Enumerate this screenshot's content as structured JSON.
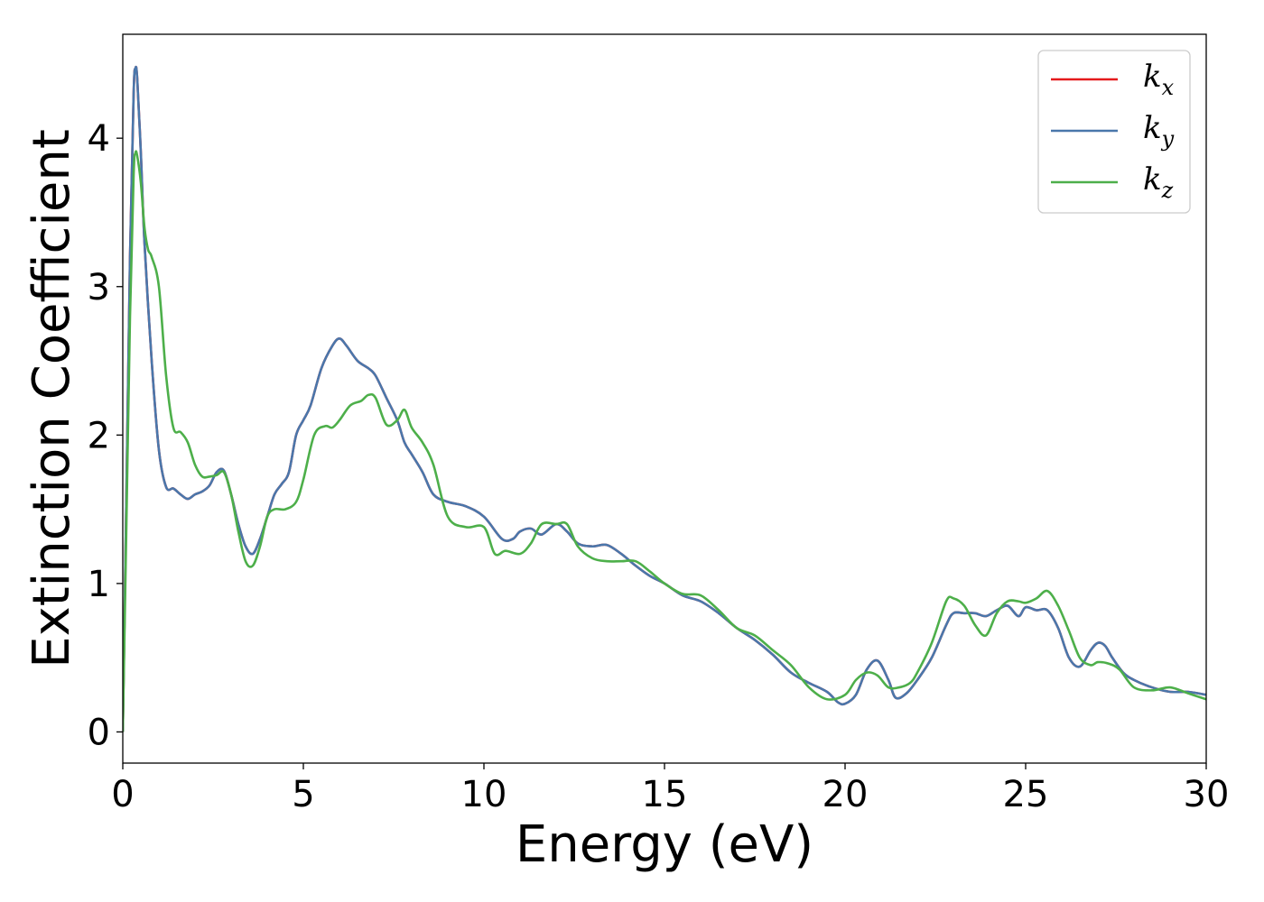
{
  "chart_data": {
    "type": "line",
    "xlabel": "Energy (eV)",
    "ylabel": "Extinction Coefficient",
    "xlim": [
      0,
      30
    ],
    "ylim": [
      -0.21,
      4.7
    ],
    "xticks": [
      "0",
      "5",
      "10",
      "15",
      "20",
      "25",
      "30"
    ],
    "yticks": [
      "0",
      "1",
      "2",
      "3",
      "4"
    ],
    "grid": false,
    "legend_position": "top-right",
    "series": [
      {
        "name_main": "k",
        "name_sub": "x",
        "color": "#e41a1c",
        "x": [
          0,
          0.1,
          0.2,
          0.3,
          0.35,
          0.4,
          0.5,
          0.6,
          0.8,
          1.0,
          1.2,
          1.4,
          1.6,
          1.8,
          2.0,
          2.2,
          2.4,
          2.6,
          2.8,
          3.0,
          3.2,
          3.4,
          3.6,
          3.8,
          4.0,
          4.2,
          4.4,
          4.6,
          4.8,
          5.0,
          5.2,
          5.5,
          5.8,
          6.0,
          6.2,
          6.5,
          6.8,
          7.0,
          7.3,
          7.6,
          7.8,
          8.0,
          8.3,
          8.6,
          9.0,
          9.5,
          10.0,
          10.5,
          10.8,
          11.0,
          11.3,
          11.6,
          12.0,
          12.3,
          12.6,
          13.0,
          13.4,
          13.8,
          14.2,
          14.6,
          15.0,
          15.5,
          16.0,
          16.5,
          17.0,
          17.5,
          18.0,
          18.5,
          19.0,
          19.5,
          19.8,
          20.0,
          20.3,
          20.6,
          20.9,
          21.2,
          21.4,
          21.7,
          22.0,
          22.4,
          22.8,
          23.0,
          23.3,
          23.6,
          23.9,
          24.2,
          24.5,
          24.8,
          25.0,
          25.3,
          25.6,
          25.9,
          26.2,
          26.5,
          26.8,
          27.0,
          27.2,
          27.4,
          27.7,
          28.0,
          28.5,
          29.0,
          29.5,
          30.0
        ],
        "y": [
          0,
          1.6,
          3.2,
          4.3,
          4.47,
          4.4,
          3.9,
          3.3,
          2.5,
          1.9,
          1.65,
          1.64,
          1.6,
          1.57,
          1.6,
          1.62,
          1.66,
          1.75,
          1.76,
          1.6,
          1.4,
          1.25,
          1.2,
          1.3,
          1.45,
          1.6,
          1.67,
          1.75,
          2.0,
          2.1,
          2.2,
          2.45,
          2.6,
          2.65,
          2.6,
          2.5,
          2.45,
          2.4,
          2.25,
          2.1,
          1.95,
          1.87,
          1.75,
          1.6,
          1.55,
          1.52,
          1.45,
          1.3,
          1.3,
          1.35,
          1.37,
          1.33,
          1.4,
          1.35,
          1.27,
          1.25,
          1.26,
          1.2,
          1.12,
          1.05,
          1.0,
          0.92,
          0.88,
          0.8,
          0.7,
          0.62,
          0.52,
          0.4,
          0.33,
          0.27,
          0.2,
          0.19,
          0.25,
          0.42,
          0.48,
          0.35,
          0.23,
          0.26,
          0.35,
          0.5,
          0.72,
          0.8,
          0.8,
          0.8,
          0.78,
          0.82,
          0.85,
          0.78,
          0.84,
          0.82,
          0.82,
          0.7,
          0.5,
          0.44,
          0.55,
          0.6,
          0.58,
          0.5,
          0.4,
          0.35,
          0.3,
          0.27,
          0.27,
          0.25
        ]
      },
      {
        "name_main": "k",
        "name_sub": "y",
        "color": "#4a77ab",
        "x": [
          0,
          0.1,
          0.2,
          0.3,
          0.35,
          0.4,
          0.5,
          0.6,
          0.8,
          1.0,
          1.2,
          1.4,
          1.6,
          1.8,
          2.0,
          2.2,
          2.4,
          2.6,
          2.8,
          3.0,
          3.2,
          3.4,
          3.6,
          3.8,
          4.0,
          4.2,
          4.4,
          4.6,
          4.8,
          5.0,
          5.2,
          5.5,
          5.8,
          6.0,
          6.2,
          6.5,
          6.8,
          7.0,
          7.3,
          7.6,
          7.8,
          8.0,
          8.3,
          8.6,
          9.0,
          9.5,
          10.0,
          10.5,
          10.8,
          11.0,
          11.3,
          11.6,
          12.0,
          12.3,
          12.6,
          13.0,
          13.4,
          13.8,
          14.2,
          14.6,
          15.0,
          15.5,
          16.0,
          16.5,
          17.0,
          17.5,
          18.0,
          18.5,
          19.0,
          19.5,
          19.8,
          20.0,
          20.3,
          20.6,
          20.9,
          21.2,
          21.4,
          21.7,
          22.0,
          22.4,
          22.8,
          23.0,
          23.3,
          23.6,
          23.9,
          24.2,
          24.5,
          24.8,
          25.0,
          25.3,
          25.6,
          25.9,
          26.2,
          26.5,
          26.8,
          27.0,
          27.2,
          27.4,
          27.7,
          28.0,
          28.5,
          29.0,
          29.5,
          30.0
        ],
        "y": [
          0,
          1.6,
          3.2,
          4.3,
          4.47,
          4.4,
          3.9,
          3.3,
          2.5,
          1.9,
          1.65,
          1.64,
          1.6,
          1.57,
          1.6,
          1.62,
          1.66,
          1.75,
          1.76,
          1.6,
          1.4,
          1.25,
          1.2,
          1.3,
          1.45,
          1.6,
          1.67,
          1.75,
          2.0,
          2.1,
          2.2,
          2.45,
          2.6,
          2.65,
          2.6,
          2.5,
          2.45,
          2.4,
          2.25,
          2.1,
          1.95,
          1.87,
          1.75,
          1.6,
          1.55,
          1.52,
          1.45,
          1.3,
          1.3,
          1.35,
          1.37,
          1.33,
          1.4,
          1.35,
          1.27,
          1.25,
          1.26,
          1.2,
          1.12,
          1.05,
          1.0,
          0.92,
          0.88,
          0.8,
          0.7,
          0.62,
          0.52,
          0.4,
          0.33,
          0.27,
          0.2,
          0.19,
          0.25,
          0.42,
          0.48,
          0.35,
          0.23,
          0.26,
          0.35,
          0.5,
          0.72,
          0.8,
          0.8,
          0.8,
          0.78,
          0.82,
          0.85,
          0.78,
          0.84,
          0.82,
          0.82,
          0.7,
          0.5,
          0.44,
          0.55,
          0.6,
          0.58,
          0.5,
          0.4,
          0.35,
          0.3,
          0.27,
          0.27,
          0.25
        ]
      },
      {
        "name_main": "k",
        "name_sub": "z",
        "color": "#4daf4a",
        "x": [
          0,
          0.1,
          0.2,
          0.3,
          0.35,
          0.4,
          0.5,
          0.6,
          0.7,
          0.8,
          1.0,
          1.2,
          1.4,
          1.6,
          1.8,
          2.0,
          2.2,
          2.4,
          2.6,
          2.8,
          3.0,
          3.2,
          3.4,
          3.6,
          3.8,
          4.0,
          4.2,
          4.5,
          4.8,
          5.0,
          5.3,
          5.6,
          5.8,
          6.0,
          6.3,
          6.6,
          6.8,
          7.0,
          7.3,
          7.6,
          7.8,
          8.0,
          8.3,
          8.6,
          9.0,
          9.5,
          10.0,
          10.3,
          10.6,
          11.0,
          11.3,
          11.6,
          12.0,
          12.3,
          12.6,
          13.0,
          13.4,
          13.8,
          14.2,
          14.6,
          15.0,
          15.5,
          16.0,
          16.5,
          17.0,
          17.5,
          18.0,
          18.5,
          19.0,
          19.5,
          20.0,
          20.3,
          20.6,
          20.9,
          21.2,
          21.5,
          21.8,
          22.0,
          22.4,
          22.8,
          23.0,
          23.3,
          23.6,
          23.9,
          24.2,
          24.5,
          24.8,
          25.0,
          25.3,
          25.6,
          25.9,
          26.2,
          26.5,
          26.8,
          27.0,
          27.3,
          27.6,
          28.0,
          28.5,
          29.0,
          29.5,
          30.0
        ],
        "y": [
          0,
          1.4,
          2.8,
          3.75,
          3.9,
          3.88,
          3.7,
          3.4,
          3.25,
          3.2,
          3.0,
          2.4,
          2.05,
          2.02,
          1.95,
          1.8,
          1.72,
          1.72,
          1.73,
          1.75,
          1.6,
          1.35,
          1.15,
          1.12,
          1.25,
          1.45,
          1.5,
          1.5,
          1.55,
          1.7,
          2.0,
          2.06,
          2.05,
          2.1,
          2.2,
          2.23,
          2.27,
          2.25,
          2.07,
          2.1,
          2.17,
          2.05,
          1.95,
          1.8,
          1.45,
          1.38,
          1.38,
          1.2,
          1.22,
          1.2,
          1.27,
          1.4,
          1.4,
          1.4,
          1.25,
          1.17,
          1.15,
          1.15,
          1.15,
          1.08,
          1.0,
          0.93,
          0.92,
          0.82,
          0.7,
          0.65,
          0.55,
          0.45,
          0.3,
          0.22,
          0.25,
          0.35,
          0.4,
          0.38,
          0.3,
          0.3,
          0.33,
          0.4,
          0.6,
          0.88,
          0.9,
          0.85,
          0.72,
          0.65,
          0.8,
          0.88,
          0.88,
          0.87,
          0.9,
          0.95,
          0.85,
          0.68,
          0.5,
          0.45,
          0.47,
          0.46,
          0.42,
          0.3,
          0.28,
          0.3,
          0.26,
          0.22
        ]
      }
    ]
  }
}
